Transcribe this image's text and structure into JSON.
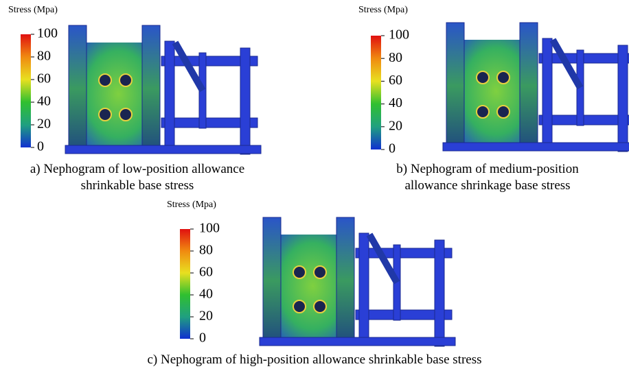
{
  "panels": [
    {
      "colorbar": {
        "label": "Stress (Mpa)",
        "ticks": [
          100,
          80,
          60,
          40,
          20,
          0
        ]
      },
      "caption": [
        "a) Nephogram of low-position allowance",
        "shrinkable base stress"
      ]
    },
    {
      "colorbar": {
        "label": "Stress (Mpa)",
        "ticks": [
          100,
          80,
          60,
          40,
          20,
          0
        ]
      },
      "caption": [
        "b) Nephogram of medium-position",
        "allowance shrinkage base stress"
      ]
    },
    {
      "colorbar": {
        "label": "Stress (Mpa)",
        "ticks": [
          100,
          80,
          60,
          40,
          20,
          0
        ]
      },
      "caption": [
        "c) Nephogram of high-position allowance shrinkable base stress"
      ]
    }
  ]
}
